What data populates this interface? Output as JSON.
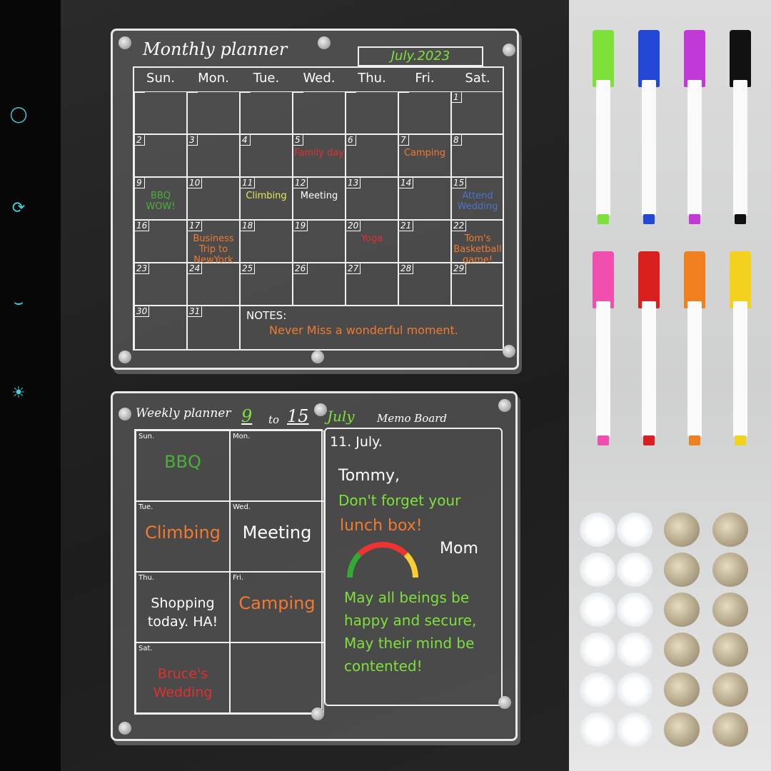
{
  "sidebar": {
    "icons": [
      "circle-dot-icon",
      "sync-icon",
      "node-curve-icon",
      "sun-icon"
    ],
    "accent": "#3fd6e0"
  },
  "monthly": {
    "title": "Monthly planner",
    "month": "July.2023",
    "weekdays": [
      "Sun.",
      "Mon.",
      "Tue.",
      "Wed.",
      "Thu.",
      "Fri.",
      "Sat."
    ],
    "days": [
      {
        "d": "",
        "n": ""
      },
      {
        "d": "",
        "n": ""
      },
      {
        "d": "",
        "n": ""
      },
      {
        "d": "",
        "n": ""
      },
      {
        "d": "",
        "n": ""
      },
      {
        "d": "",
        "n": ""
      },
      {
        "d": "1",
        "n": ""
      },
      {
        "d": "2",
        "n": ""
      },
      {
        "d": "3",
        "n": ""
      },
      {
        "d": "4",
        "n": ""
      },
      {
        "d": "5",
        "n": "Family day",
        "c": "#e03030"
      },
      {
        "d": "6",
        "n": ""
      },
      {
        "d": "7",
        "n": "Camping",
        "c": "#f07a30"
      },
      {
        "d": "8",
        "n": ""
      },
      {
        "d": "9",
        "n": "BBQ WOW!",
        "c": "#4caf3a"
      },
      {
        "d": "10",
        "n": ""
      },
      {
        "d": "11",
        "n": "Climbing",
        "c": "#e8e85a"
      },
      {
        "d": "12",
        "n": "Meeting",
        "c": "#ffffff"
      },
      {
        "d": "13",
        "n": ""
      },
      {
        "d": "14",
        "n": ""
      },
      {
        "d": "15",
        "n": "Attend Wedding",
        "c": "#4f72c8"
      },
      {
        "d": "16",
        "n": ""
      },
      {
        "d": "17",
        "n": "Business Trip to NewYork",
        "c": "#f07a30"
      },
      {
        "d": "18",
        "n": ""
      },
      {
        "d": "19",
        "n": ""
      },
      {
        "d": "20",
        "n": "Yoga",
        "c": "#e03030"
      },
      {
        "d": "21",
        "n": ""
      },
      {
        "d": "22",
        "n": "Tom's Basketball game!",
        "c": "#f07a30"
      },
      {
        "d": "23",
        "n": ""
      },
      {
        "d": "24",
        "n": ""
      },
      {
        "d": "25",
        "n": ""
      },
      {
        "d": "26",
        "n": ""
      },
      {
        "d": "27",
        "n": ""
      },
      {
        "d": "28",
        "n": ""
      },
      {
        "d": "29",
        "n": ""
      },
      {
        "d": "30",
        "n": ""
      },
      {
        "d": "31",
        "n": ""
      }
    ],
    "notes_label": "NOTES:",
    "notes_text": "Never Miss a wonderful moment."
  },
  "weekly": {
    "title": "Weekly planner",
    "from": "9",
    "to_word": "to",
    "to": "15",
    "month": "July",
    "memo_title": "Memo Board",
    "cells": [
      {
        "label": "Sun.",
        "note": "BBQ",
        "c": "#4caf3a"
      },
      {
        "label": "Mon.",
        "note": ""
      },
      {
        "label": "Tue.",
        "note": "Climbing",
        "c": "#f07a30"
      },
      {
        "label": "Wed.",
        "note": "Meeting",
        "c": "#ffffff"
      },
      {
        "label": "Thu.",
        "note": "Shopping today. HA!",
        "c": "#ffffff"
      },
      {
        "label": "Fri.",
        "note": "Camping",
        "c": "#f07a30"
      },
      {
        "label": "Sat.",
        "note": "Bruce's Wedding",
        "c": "#e03030"
      },
      {
        "label": "",
        "note": ""
      }
    ],
    "memo": {
      "date": "11. July.",
      "l1": "Tommy,",
      "l2": "Don't forget your",
      "l3": "lunch box!",
      "l4": "Mom",
      "l5": "May all beings be happy and secure, May their mind be contented!"
    }
  },
  "markers": [
    "#7ee03a",
    "#2447d6",
    "#c13ad8",
    "#111111",
    "#f04fb0",
    "#d82020",
    "#f0801e",
    "#f2d21e"
  ]
}
